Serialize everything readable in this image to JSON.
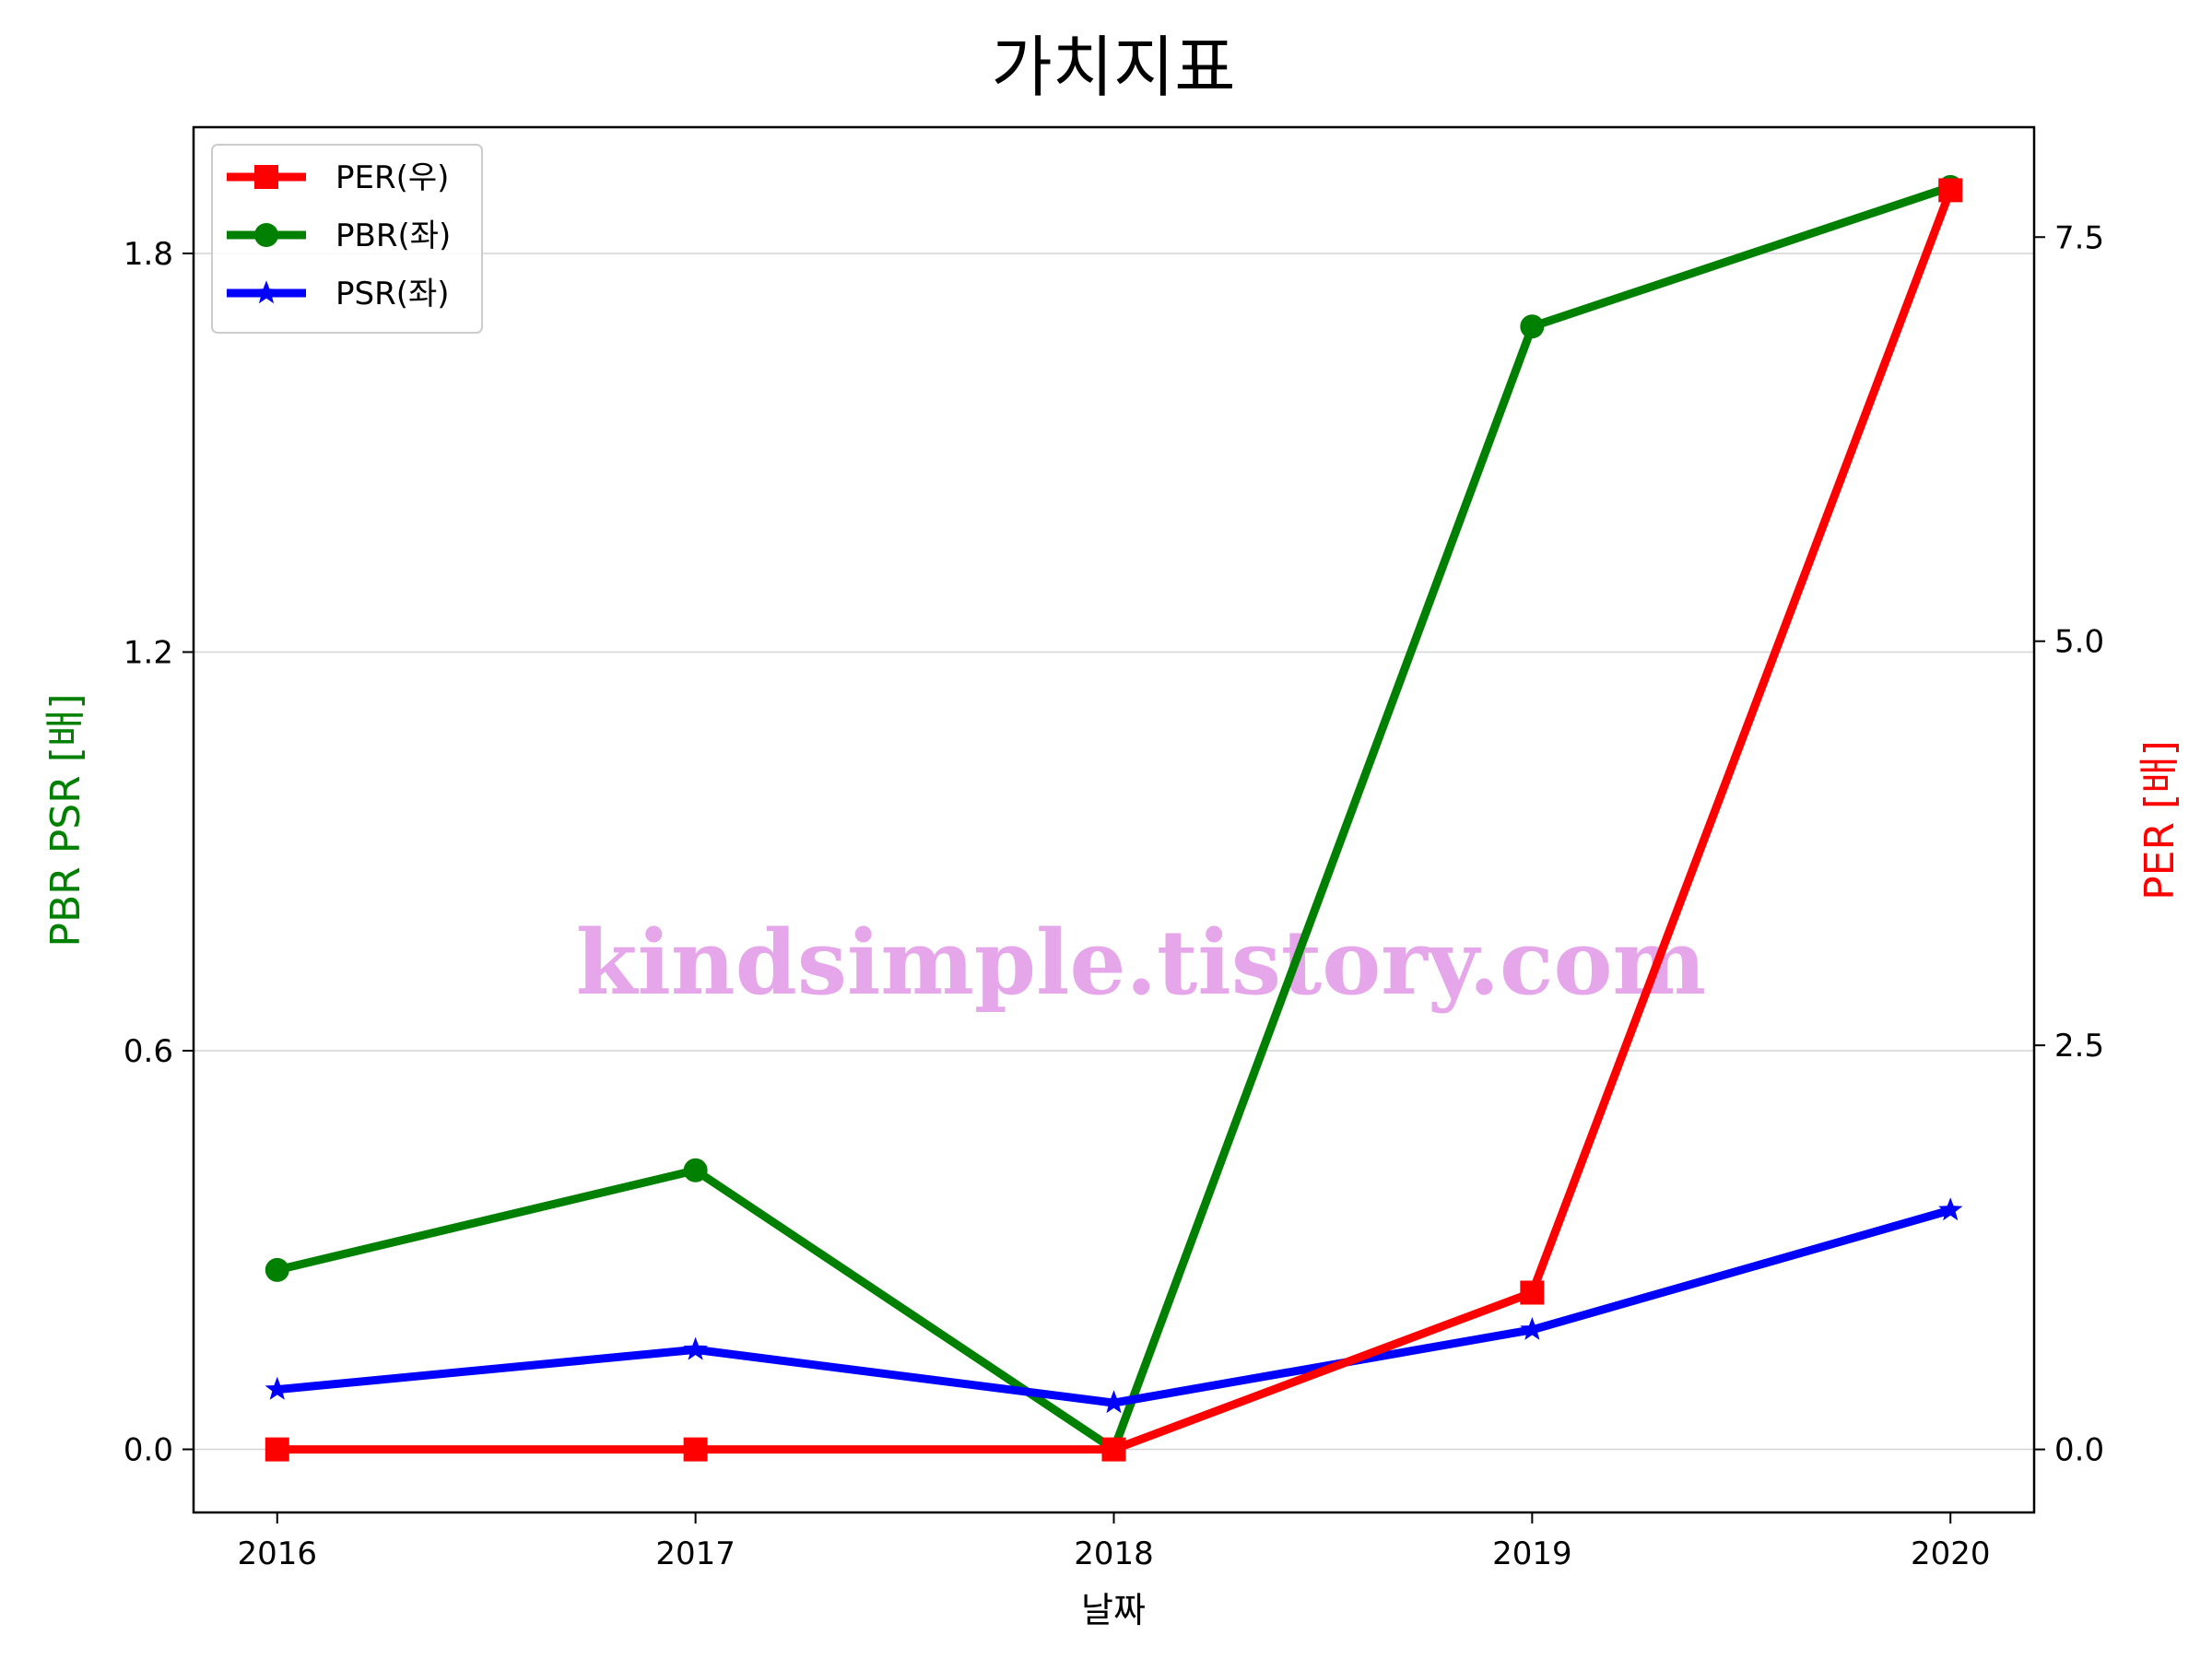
{
  "chart_data": {
    "type": "line",
    "title": "가치지표",
    "xlabel": "날짜",
    "ylabel_left": "PBR PSR [배]",
    "ylabel_right": "PER [배]",
    "ylabel_left_color": "#008000",
    "ylabel_right_color": "#ff0000",
    "x": [
      "2016",
      "2017",
      "2018",
      "2019",
      "2020"
    ],
    "xlim": [
      2015.8,
      2020.2
    ],
    "ylim_left": [
      -0.095,
      1.99
    ],
    "ylim_right": [
      -0.39,
      8.18
    ],
    "yticks_left": [
      "0.0",
      "0.6",
      "1.2",
      "1.8"
    ],
    "yticks_right": [
      "0.0",
      "2.5",
      "5.0",
      "7.5"
    ],
    "grid": "horizontal",
    "legend_position": "top-left",
    "series": [
      {
        "name": "PER(우)",
        "axis": "right",
        "color": "#ff0000",
        "marker": "square",
        "values": [
          0.0,
          0.0,
          0.0,
          0.97,
          7.79
        ]
      },
      {
        "name": "PBR(좌)",
        "axis": "left",
        "color": "#008000",
        "marker": "circle",
        "values": [
          0.27,
          0.42,
          0.0,
          1.69,
          1.9
        ]
      },
      {
        "name": "PSR(좌)",
        "axis": "left",
        "color": "#0000ff",
        "marker": "star",
        "values": [
          0.09,
          0.15,
          0.07,
          0.18,
          0.36
        ]
      }
    ],
    "watermark": "kindsimple.tistory.com"
  }
}
